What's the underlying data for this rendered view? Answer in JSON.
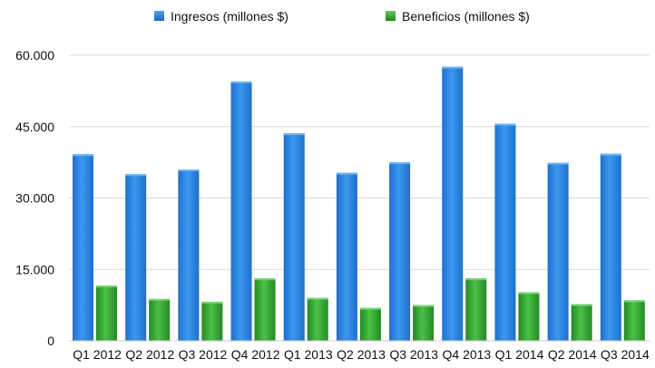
{
  "chart_data": {
    "type": "bar",
    "title": "",
    "xlabel": "",
    "ylabel": "",
    "categories": [
      "Q1 2012",
      "Q2 2012",
      "Q3 2012",
      "Q4 2012",
      "Q1 2013",
      "Q2 2013",
      "Q3 2013",
      "Q4 2013",
      "Q1 2014",
      "Q2 2014",
      "Q3 2014"
    ],
    "series": [
      {
        "name": "Ingresos (millones $)",
        "color": "#2a86e0",
        "values": [
          39200,
          35000,
          36000,
          54500,
          43600,
          35300,
          37500,
          57600,
          45600,
          37400,
          39300
        ]
      },
      {
        "name": "Beneficios (millones $)",
        "color": "#33a532",
        "values": [
          11600,
          8800,
          8200,
          13100,
          9000,
          6900,
          7500,
          13100,
          10200,
          7700,
          8500
        ]
      }
    ],
    "ylim": [
      0,
      60000
    ],
    "yticks": [
      0,
      15000,
      30000,
      45000,
      60000
    ],
    "ytick_labels": [
      "0",
      "15.000",
      "30.000",
      "45.000",
      "60.000"
    ],
    "grid": true,
    "legend_position": "top"
  }
}
